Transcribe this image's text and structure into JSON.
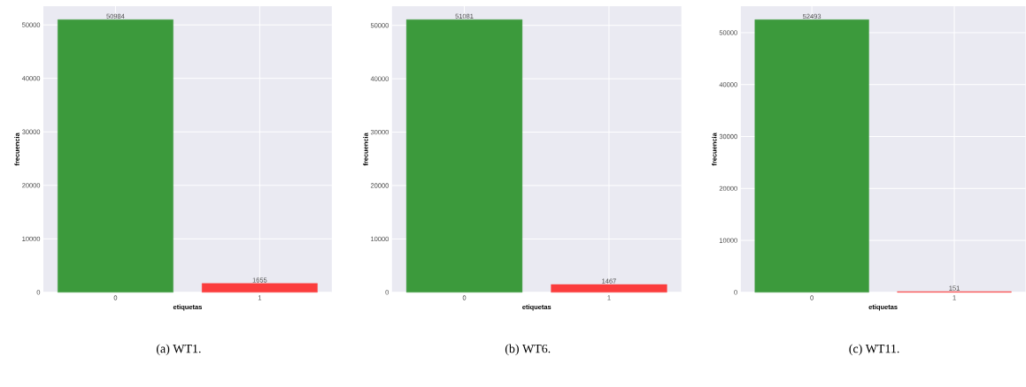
{
  "chart_data": [
    {
      "type": "bar",
      "categories": [
        "0",
        "1"
      ],
      "values": [
        50984,
        1655
      ],
      "colors": [
        "#3c9a3c",
        "#fb3d3d"
      ],
      "xlabel": "etiquetas",
      "ylabel": "frecuencia",
      "ylim": [
        0,
        53500
      ],
      "yticks": [
        0,
        10000,
        20000,
        30000,
        40000,
        50000
      ],
      "grid": true,
      "data_labels": true,
      "annotations": [
        "(a) WT1."
      ]
    },
    {
      "type": "bar",
      "categories": [
        "0",
        "1"
      ],
      "values": [
        51081,
        1467
      ],
      "colors": [
        "#3c9a3c",
        "#fb3d3d"
      ],
      "xlabel": "etiquetas",
      "ylabel": "frecuencia",
      "ylim": [
        0,
        53600
      ],
      "yticks": [
        0,
        10000,
        20000,
        30000,
        40000,
        50000
      ],
      "grid": true,
      "data_labels": true,
      "annotations": [
        "(b) WT6."
      ]
    },
    {
      "type": "bar",
      "categories": [
        "0",
        "1"
      ],
      "values": [
        52493,
        151
      ],
      "colors": [
        "#3c9a3c",
        "#fb3d3d"
      ],
      "xlabel": "etiquetas",
      "ylabel": "frecuencia",
      "ylim": [
        0,
        55100
      ],
      "yticks": [
        0,
        10000,
        20000,
        30000,
        40000,
        50000
      ],
      "grid": true,
      "data_labels": true,
      "annotations": [
        "(c) WT11."
      ]
    }
  ]
}
